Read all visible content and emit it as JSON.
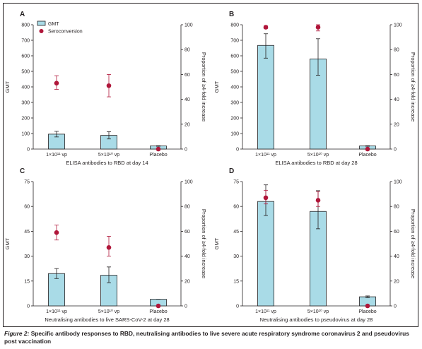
{
  "caption": {
    "figure_label": "Figure 2:",
    "text": " Specific antibody responses to RBD, neutralising antibodies to live severe acute respiratory syndrome coronavirus 2 and pseudovirus post vaccination"
  },
  "legend": {
    "bar_label": "GMT",
    "dot_label": "Seroconversion"
  },
  "colors": {
    "bar_fill": "#a9dbe7",
    "bar_stroke": "#231f20",
    "dot": "#b0163a",
    "axis": "#231f20",
    "frame": "#231f20"
  },
  "chart_data": [
    {
      "panel": "A",
      "type": "bar",
      "categories": [
        "1×10¹¹ vp",
        "5×10¹⁰ vp",
        "Placebo"
      ],
      "xlabel": "ELISA antibodies to RBD at day 14",
      "ylabel": "GMT",
      "ylabel_right": "Proportion of ≥4-fold increase",
      "ylim": [
        0,
        800
      ],
      "yticks": [
        0,
        100,
        200,
        300,
        400,
        500,
        600,
        700,
        800
      ],
      "ylim_right": [
        0,
        100
      ],
      "yticks_right": [
        0,
        20,
        40,
        60,
        80,
        100
      ],
      "show_legend": true,
      "series": [
        {
          "name": "GMT",
          "values": [
            96,
            88,
            20
          ],
          "err_low": [
            78,
            65,
            18
          ],
          "err_high": [
            114,
            112,
            22
          ]
        },
        {
          "name": "Seroconversion",
          "values": [
            53,
            51,
            0
          ],
          "err_low": [
            48,
            42,
            0
          ],
          "err_high": [
            59,
            60,
            0
          ]
        }
      ]
    },
    {
      "panel": "B",
      "type": "bar",
      "categories": [
        "1×10¹¹ vp",
        "5×10¹⁰ vp",
        "Placebo"
      ],
      "xlabel": "ELISA antibodies to RBD at day 28",
      "ylabel": "GMT",
      "ylabel_right": "Proportion of ≥4-fold increase",
      "ylim": [
        0,
        800
      ],
      "yticks": [
        0,
        100,
        200,
        300,
        400,
        500,
        600,
        700,
        800
      ],
      "ylim_right": [
        0,
        100
      ],
      "yticks_right": [
        0,
        20,
        40,
        60,
        80,
        100
      ],
      "show_legend": false,
      "series": [
        {
          "name": "GMT",
          "values": [
            667,
            580,
            20
          ],
          "err_low": [
            585,
            475,
            18
          ],
          "err_high": [
            742,
            710,
            22
          ]
        },
        {
          "name": "Seroconversion",
          "values": [
            98,
            98,
            0
          ],
          "err_low": [
            97,
            95,
            0
          ],
          "err_high": [
            99,
            100,
            0
          ]
        }
      ]
    },
    {
      "panel": "C",
      "type": "bar",
      "categories": [
        "1×10¹¹ vp",
        "5×10¹⁰ vp",
        "Placebo"
      ],
      "xlabel": "Neutralising antibodies to live SARS-CoV-2 at day 28",
      "ylabel": "GMT",
      "ylabel_right": "Proportion of ≥4-fold increase",
      "ylim": [
        0,
        75
      ],
      "yticks": [
        0,
        15,
        30,
        45,
        60,
        75
      ],
      "ylim_right": [
        0,
        100
      ],
      "yticks_right": [
        0,
        20,
        40,
        60,
        80,
        100
      ],
      "show_legend": false,
      "series": [
        {
          "name": "GMT",
          "values": [
            19.5,
            18.5,
            4
          ],
          "err_low": [
            16.5,
            14,
            4
          ],
          "err_high": [
            22.5,
            23.5,
            4
          ]
        },
        {
          "name": "Seroconversion",
          "values": [
            59,
            47,
            0
          ],
          "err_low": [
            53,
            40,
            0
          ],
          "err_high": [
            65,
            56,
            0
          ]
        }
      ]
    },
    {
      "panel": "D",
      "type": "bar",
      "categories": [
        "1×10¹¹ vp",
        "5×10¹⁰ vp",
        "Placebo"
      ],
      "xlabel": "Neutralising antibodies to pseudovirus at day 28",
      "ylabel": "GMT",
      "ylabel_right": "Proportion of ≥4-fold increase",
      "ylim": [
        0,
        75
      ],
      "yticks": [
        0,
        15,
        30,
        45,
        60,
        75
      ],
      "ylim_right": [
        0,
        100
      ],
      "yticks_right": [
        0,
        20,
        40,
        60,
        80,
        100
      ],
      "show_legend": false,
      "series": [
        {
          "name": "GMT",
          "values": [
            63,
            57,
            5.5
          ],
          "err_low": [
            54.5,
            46.5,
            5
          ],
          "err_high": [
            73,
            69.5,
            6
          ]
        },
        {
          "name": "Seroconversion",
          "values": [
            87,
            85,
            0
          ],
          "err_low": [
            82,
            80,
            0
          ],
          "err_high": [
            93,
            92,
            0
          ]
        }
      ]
    }
  ]
}
